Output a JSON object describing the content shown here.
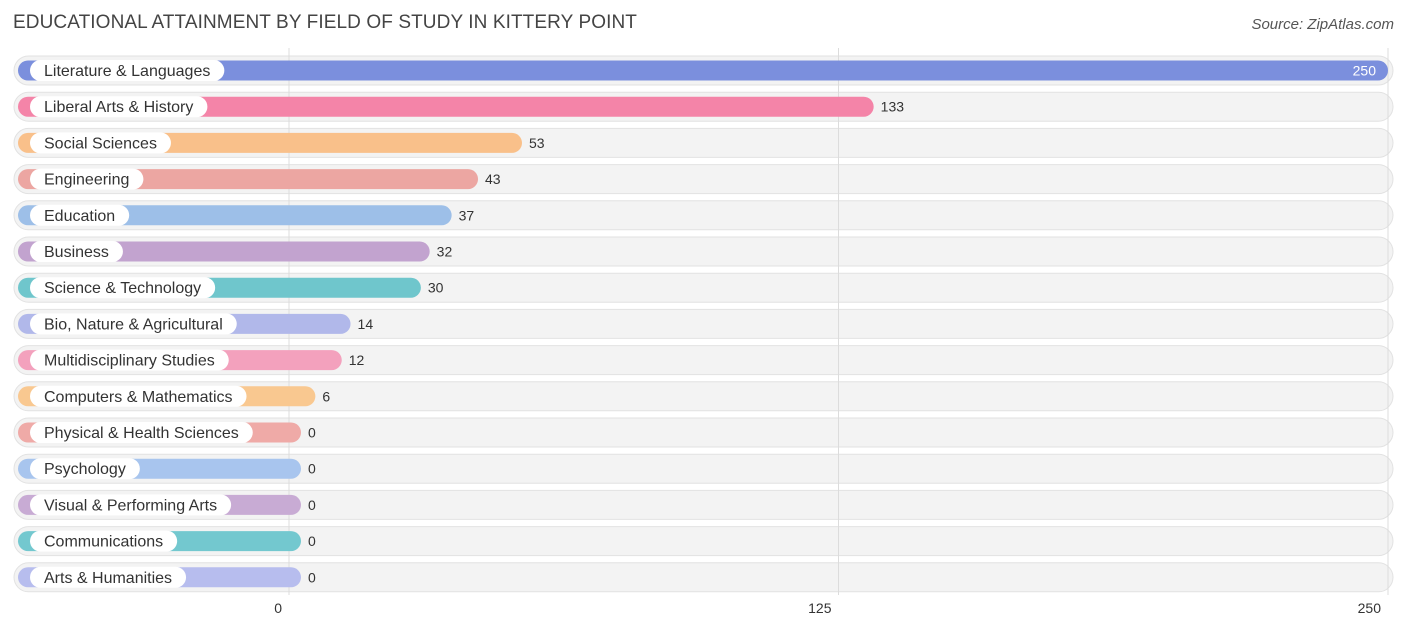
{
  "header": {
    "title": "EDUCATIONAL ATTAINMENT BY FIELD OF STUDY IN KITTERY POINT",
    "source": "Source: ZipAtlas.com"
  },
  "chart_data": {
    "type": "bar",
    "orientation": "horizontal",
    "title": "EDUCATIONAL ATTAINMENT BY FIELD OF STUDY IN KITTERY POINT",
    "xlabel": "",
    "ylabel": "",
    "xlim": [
      0,
      250
    ],
    "ticks": [
      0,
      125,
      250
    ],
    "tick_labels": [
      "0",
      "125",
      "250"
    ],
    "grid": true,
    "categories": [
      "Literature & Languages",
      "Liberal Arts & History",
      "Social Sciences",
      "Engineering",
      "Education",
      "Business",
      "Science & Technology",
      "Bio, Nature & Agricultural",
      "Multidisciplinary Studies",
      "Computers & Mathematics",
      "Physical & Health Sciences",
      "Psychology",
      "Visual & Performing Arts",
      "Communications",
      "Arts & Humanities"
    ],
    "values": [
      250,
      133,
      53,
      43,
      37,
      32,
      30,
      14,
      12,
      6,
      0,
      0,
      0,
      0,
      0
    ],
    "value_labels": [
      "250",
      "133",
      "53",
      "43",
      "37",
      "32",
      "30",
      "14",
      "12",
      "6",
      "0",
      "0",
      "0",
      "0",
      "0"
    ],
    "colors": [
      "#7b8fdd",
      "#f484a8",
      "#f9c08a",
      "#eca6a2",
      "#9dbfe8",
      "#c2a3cf",
      "#6fc6cc",
      "#b1b8ea",
      "#f3a1bd",
      "#f9c890",
      "#efaaa7",
      "#a8c5ee",
      "#c8abd4",
      "#73c8cf",
      "#b7bdee"
    ]
  }
}
